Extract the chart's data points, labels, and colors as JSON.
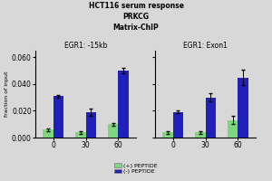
{
  "title_line1": "HCT116 serum response",
  "title_line2": "PRKCG",
  "title_line3": "Matrix-ChIP",
  "subplot1_title": "EGR1: -15kb",
  "subplot2_title": "EGR1: Exon1",
  "xlabel_ticks": [
    "0",
    "30",
    "60"
  ],
  "ylabel": "fraction of input",
  "ylim": [
    0,
    0.065
  ],
  "yticks": [
    0.0,
    0.02,
    0.04,
    0.06
  ],
  "yticklabels": [
    "0.000",
    "0.020",
    "0.040",
    "0.060"
  ],
  "legend_labels": [
    "(+) PEPTIDE",
    "(-) PEPTIDE"
  ],
  "colors": [
    "#7dd87d",
    "#2020bb"
  ],
  "subplot1": {
    "green_vals": [
      0.006,
      0.004,
      0.01
    ],
    "blue_vals": [
      0.031,
      0.019,
      0.05
    ],
    "green_err": [
      0.001,
      0.001,
      0.001
    ],
    "blue_err": [
      0.001,
      0.003,
      0.002
    ]
  },
  "subplot2": {
    "green_vals": [
      0.004,
      0.004,
      0.013
    ],
    "blue_vals": [
      0.019,
      0.03,
      0.045
    ],
    "green_err": [
      0.001,
      0.001,
      0.003
    ],
    "blue_err": [
      0.001,
      0.003,
      0.006
    ]
  },
  "bg_color": "#d8d8d8"
}
